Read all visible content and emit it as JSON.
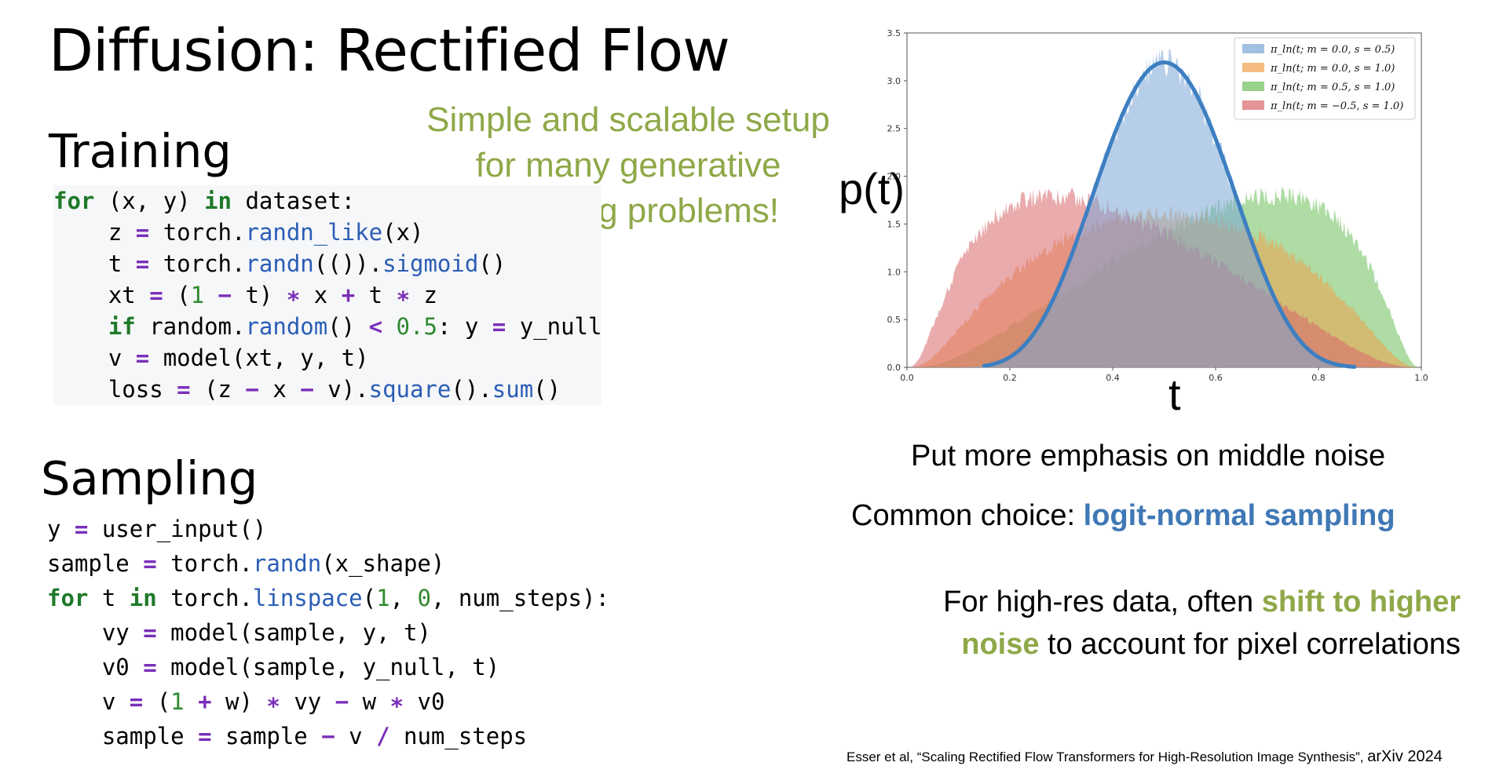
{
  "slide": {
    "title": "Diffusion: Rectified Flow",
    "training_heading": "Training",
    "sampling_heading": "Sampling",
    "callout": [
      "Simple and scalable setup",
      "for many generative",
      "modeling problems!"
    ],
    "notes": {
      "emphasis": "Put more emphasis on middle noise",
      "choice_prefix": "Common choice: ",
      "choice_highlight": "logit-normal sampling",
      "highres_prefix": "For high-res data, often ",
      "highres_highlight_1": "shift to higher",
      "highres_highlight_2": "noise",
      "highres_suffix": " to account for pixel correlations"
    },
    "citation": {
      "authors": "Esser et al, ",
      "paper": "“Scaling Rectified Flow Transformers for High-Resolution Image Synthesis”, ",
      "venue": "arXiv 2024"
    }
  },
  "training_code": [
    [
      [
        "kw",
        "for"
      ],
      [
        "t",
        " (x, y) "
      ],
      [
        "kw",
        "in"
      ],
      [
        "t",
        " dataset:"
      ]
    ],
    [
      [
        "t",
        "    z "
      ],
      [
        "op",
        "="
      ],
      [
        "t",
        " torch."
      ],
      [
        "fn",
        "randn_like"
      ],
      [
        "t",
        "(x)"
      ]
    ],
    [
      [
        "t",
        "    t "
      ],
      [
        "op",
        "="
      ],
      [
        "t",
        " torch."
      ],
      [
        "fn",
        "randn"
      ],
      [
        "t",
        "(())."
      ],
      [
        "fn",
        "sigmoid"
      ],
      [
        "t",
        "()"
      ]
    ],
    [
      [
        "t",
        "    xt "
      ],
      [
        "op",
        "="
      ],
      [
        "t",
        " ("
      ],
      [
        "num",
        "1"
      ],
      [
        "t",
        " "
      ],
      [
        "op",
        "−"
      ],
      [
        "t",
        " t) "
      ],
      [
        "op",
        "∗"
      ],
      [
        "t",
        " x "
      ],
      [
        "op",
        "+"
      ],
      [
        "t",
        " t "
      ],
      [
        "op",
        "∗"
      ],
      [
        "t",
        " z"
      ]
    ],
    [
      [
        "t",
        "    "
      ],
      [
        "kw",
        "if"
      ],
      [
        "t",
        " random."
      ],
      [
        "fn",
        "random"
      ],
      [
        "t",
        "() "
      ],
      [
        "op",
        "<"
      ],
      [
        "t",
        " "
      ],
      [
        "num",
        "0.5"
      ],
      [
        "t",
        ": y "
      ],
      [
        "op",
        "="
      ],
      [
        "t",
        " y_null"
      ]
    ],
    [
      [
        "t",
        "    v "
      ],
      [
        "op",
        "="
      ],
      [
        "t",
        " model(xt, y, t)"
      ]
    ],
    [
      [
        "t",
        "    loss "
      ],
      [
        "op",
        "="
      ],
      [
        "t",
        " (z "
      ],
      [
        "op",
        "−"
      ],
      [
        "t",
        " x "
      ],
      [
        "op",
        "−"
      ],
      [
        "t",
        " v)."
      ],
      [
        "fn",
        "square"
      ],
      [
        "t",
        "()."
      ],
      [
        "fn",
        "sum"
      ],
      [
        "t",
        "()"
      ]
    ]
  ],
  "sampling_code": [
    [
      [
        "t",
        "y "
      ],
      [
        "op",
        "="
      ],
      [
        "t",
        " user_input()"
      ]
    ],
    [
      [
        "t",
        "sample "
      ],
      [
        "op",
        "="
      ],
      [
        "t",
        " torch."
      ],
      [
        "fn",
        "randn"
      ],
      [
        "t",
        "(x_shape)"
      ]
    ],
    [
      [
        "kw",
        "for"
      ],
      [
        "t",
        " t "
      ],
      [
        "kw",
        "in"
      ],
      [
        "t",
        " torch."
      ],
      [
        "fn",
        "linspace"
      ],
      [
        "t",
        "("
      ],
      [
        "num",
        "1"
      ],
      [
        "t",
        ", "
      ],
      [
        "num",
        "0"
      ],
      [
        "t",
        ", num_steps):"
      ]
    ],
    [
      [
        "t",
        "    vy "
      ],
      [
        "op",
        "="
      ],
      [
        "t",
        " model(sample, y, t)"
      ]
    ],
    [
      [
        "t",
        "    v0 "
      ],
      [
        "op",
        "="
      ],
      [
        "t",
        " model(sample, y_null, t)"
      ]
    ],
    [
      [
        "t",
        "    v "
      ],
      [
        "op",
        "="
      ],
      [
        "t",
        " ("
      ],
      [
        "num",
        "1"
      ],
      [
        "t",
        " "
      ],
      [
        "op",
        "+"
      ],
      [
        "t",
        " w) "
      ],
      [
        "op",
        "∗"
      ],
      [
        "t",
        " vy "
      ],
      [
        "op",
        "−"
      ],
      [
        "t",
        " w "
      ],
      [
        "op",
        "∗"
      ],
      [
        "t",
        " v0"
      ]
    ],
    [
      [
        "t",
        "    sample "
      ],
      [
        "op",
        "="
      ],
      [
        "t",
        " sample "
      ],
      [
        "op",
        "−"
      ],
      [
        "t",
        " v "
      ],
      [
        "op",
        "/"
      ],
      [
        "t",
        " num_steps"
      ]
    ]
  ],
  "chart_data": {
    "type": "area",
    "xlabel": "t",
    "ylabel": "p(t)",
    "xlim": [
      0.0,
      1.0
    ],
    "ylim": [
      0.0,
      3.5
    ],
    "x_ticks": [
      "0.0",
      "0.2",
      "0.4",
      "0.6",
      "0.8",
      "1.0"
    ],
    "y_ticks": [
      "0.0",
      "0.5",
      "1.0",
      "1.5",
      "2.0",
      "2.5",
      "3.0",
      "3.5"
    ],
    "legend_position": "top-right",
    "legend": [
      "π_ln(t; m = 0.0, s = 0.5)",
      "π_ln(t; m = 0.0, s = 1.0)",
      "π_ln(t; m = 0.5, s = 1.0)",
      "π_ln(t; m = −0.5, s = 1.0)"
    ],
    "colors": [
      "#7aa6d6",
      "#f0a04b",
      "#6cbf5a",
      "#d9666a"
    ],
    "series_params": [
      {
        "m": 0.0,
        "s": 0.5
      },
      {
        "m": 0.0,
        "s": 1.0
      },
      {
        "m": 0.5,
        "s": 1.0
      },
      {
        "m": -0.5,
        "s": 1.0
      }
    ],
    "outline_color": "#3d7fc1"
  }
}
